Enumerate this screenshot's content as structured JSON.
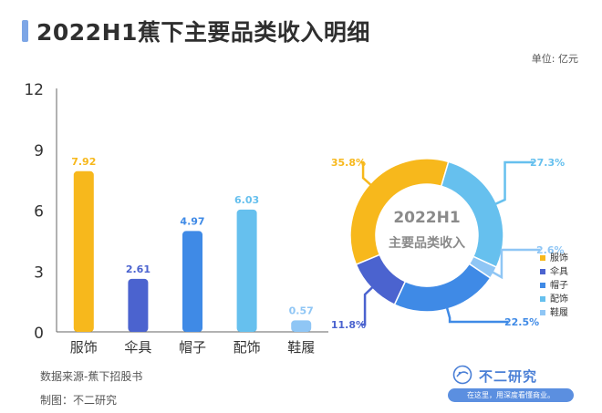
{
  "header": {
    "title": "2022H1蕉下主要品类收入明细",
    "unit": "单位: 亿元"
  },
  "footer": {
    "source": "数据来源-蕉下招股书",
    "maker": "制图：不二研究",
    "brand_name": "不二研究",
    "brand_slogan": "在这里，用深度看懂商业。"
  },
  "colors": {
    "服饰": "#f7b81c",
    "伞具": "#4b63cf",
    "帽子": "#3f8ae6",
    "配饰": "#66c0ee",
    "鞋履": "#8fc6f5",
    "axis": "#666666",
    "title_accent": "#7da6e6"
  },
  "chart_data": [
    {
      "type": "bar",
      "categories": [
        "服饰",
        "伞具",
        "帽子",
        "配饰",
        "鞋履"
      ],
      "values": [
        7.92,
        2.61,
        4.97,
        6.03,
        0.57
      ],
      "value_labels": [
        "7.92",
        "2.61",
        "4.97",
        "6.03",
        "0.57"
      ],
      "yticks": [
        "0",
        "3",
        "6",
        "9",
        "12"
      ],
      "ylim": [
        0,
        12
      ]
    },
    {
      "type": "pie",
      "donut": true,
      "center_text": [
        "2022H1",
        "主要品类收入"
      ],
      "labels": [
        "服饰",
        "配饰",
        "鞋履",
        "帽子",
        "伞具"
      ],
      "values": [
        35.8,
        27.3,
        2.6,
        22.5,
        11.8
      ],
      "value_labels": [
        "35.8%",
        "27.3%",
        "2.6%",
        "22.5%",
        "11.8%"
      ],
      "legend": [
        "服饰",
        "伞具",
        "帽子",
        "配饰",
        "鞋履"
      ],
      "legend_position": "right"
    }
  ]
}
